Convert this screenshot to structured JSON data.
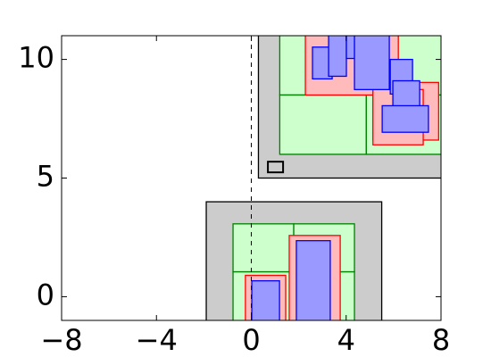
{
  "chart_data": {
    "type": "rectangles",
    "xlim": [
      -8,
      8
    ],
    "ylim": [
      -1,
      11
    ],
    "xticks": [
      {
        "value": -8,
        "label": "−8"
      },
      {
        "value": -4,
        "label": "−4"
      },
      0,
      4,
      8
    ],
    "yticks": [
      0,
      5,
      10
    ],
    "vline": 0,
    "groups": [
      {
        "facecolor": "#cccccc",
        "edgecolor": "#000000",
        "boxes": [
          [
            0.3,
            5,
            8.2,
            11.2
          ],
          [
            -1.9,
            -1.2,
            5.5,
            4.0
          ]
        ]
      },
      {
        "facecolor": "#ccffcc",
        "edgecolor": "#008000",
        "boxes": [
          [
            1.2,
            8.5,
            8.2,
            11.2
          ],
          [
            1.2,
            6,
            4.85,
            8.5
          ],
          [
            4.85,
            6,
            8.2,
            8.5
          ],
          [
            -0.77,
            -1.2,
            4.35,
            1.05
          ],
          [
            -0.77,
            1.05,
            1.79,
            3.07
          ],
          [
            1.79,
            1.05,
            4.35,
            3.07
          ]
        ]
      },
      {
        "facecolor": "#ffbbbb",
        "edgecolor": "#ff0000",
        "boxes": [
          [
            -0.25,
            -1.2,
            1.45,
            0.9
          ],
          [
            1.6,
            -1.2,
            3.75,
            2.58
          ],
          [
            2.28,
            8.5,
            6.2,
            11.2
          ],
          [
            5.13,
            6.6,
            7.9,
            9.03
          ],
          [
            5.13,
            6.4,
            7.25,
            8.73
          ]
        ]
      },
      {
        "facecolor": "#9999ff",
        "edgecolor": "#0000ff",
        "boxes": [
          [
            0.02,
            -1.2,
            1.19,
            0.67
          ],
          [
            1.9,
            -1.2,
            3.33,
            2.36
          ],
          [
            2.58,
            9.18,
            3.41,
            10.52
          ],
          [
            3.26,
            9.29,
            4.01,
            11.2
          ],
          [
            4.01,
            10.04,
            4.84,
            11.2
          ],
          [
            4.35,
            8.73,
            5.82,
            11.2
          ],
          [
            5.86,
            8.54,
            6.8,
            10.0
          ],
          [
            5.97,
            7.6,
            7.1,
            9.1
          ],
          [
            5.52,
            6.93,
            7.47,
            8.05
          ]
        ]
      },
      {
        "facecolor": "none",
        "edgecolor": "#000000",
        "boxes": [
          [
            0.7,
            5.24,
            1.34,
            5.69
          ]
        ]
      }
    ]
  }
}
